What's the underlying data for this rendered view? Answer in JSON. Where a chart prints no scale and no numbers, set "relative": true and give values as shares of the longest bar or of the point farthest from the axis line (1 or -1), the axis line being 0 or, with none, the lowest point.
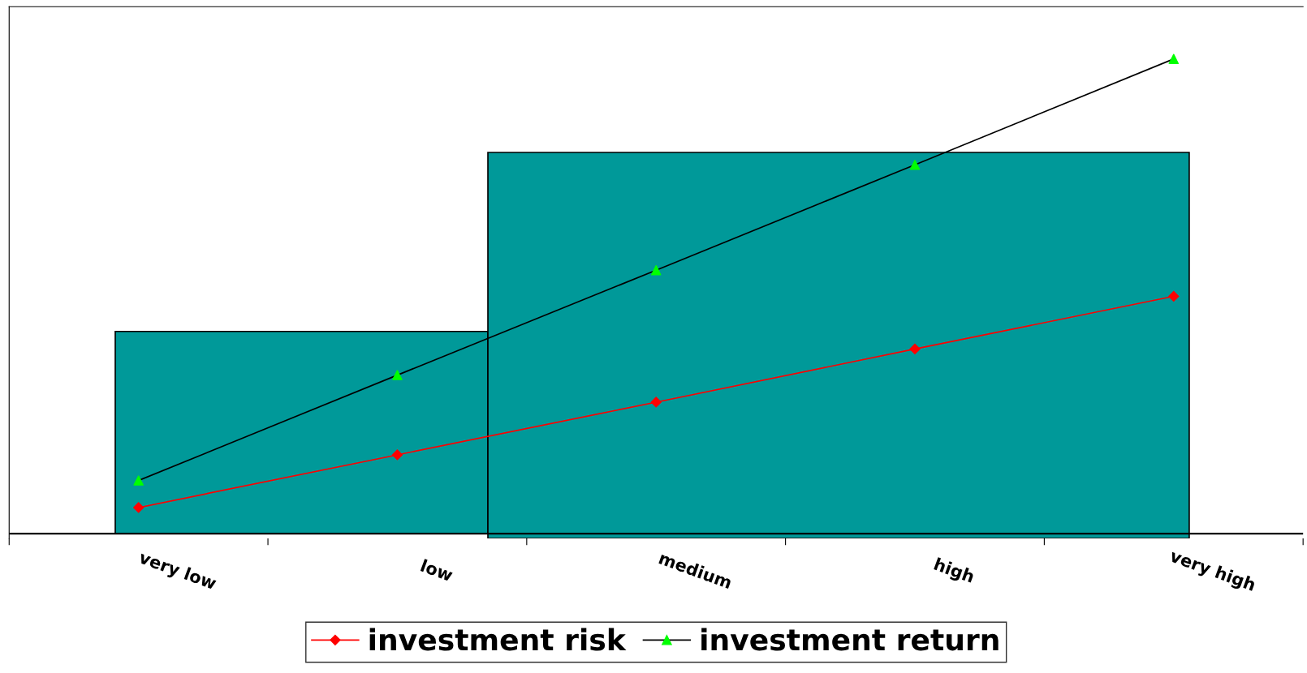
{
  "chart_data": {
    "type": "line",
    "relative": true,
    "categories": [
      "very low",
      "low",
      "medium",
      "high",
      "very high"
    ],
    "series": [
      {
        "name": "investment risk",
        "color": "#ff0000",
        "marker": "diamond",
        "values": [
          0.055,
          0.166,
          0.277,
          0.389,
          0.5
        ]
      },
      {
        "name": "investment return",
        "color": "#000000",
        "colors": [
          "#00ff00",
          "#00ff00",
          "#00ff00",
          "#00ff00",
          "#00ff00"
        ],
        "marker": "triangle",
        "values": [
          0.112,
          0.334,
          0.555,
          0.777,
          1
        ]
      }
    ],
    "legend": "bottom",
    "grid": false
  }
}
